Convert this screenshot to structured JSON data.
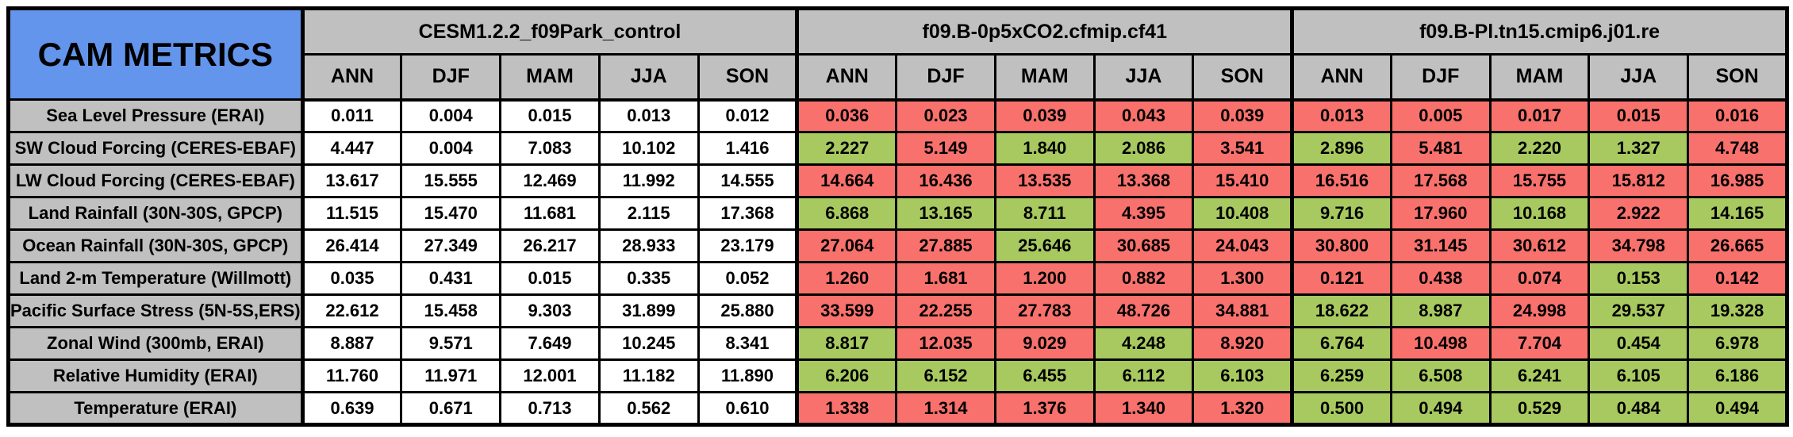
{
  "title": "CAM METRICS",
  "colors": {
    "title_bg": "#6495ED",
    "header_bg": "#C0C0C0",
    "label_bg": "#C0C0C0",
    "red": "#F9716C",
    "green": "#A8C95F",
    "white": "#FFFFFF",
    "border": "#000000"
  },
  "chart_data": {
    "type": "table",
    "title": "CAM METRICS",
    "column_groups": [
      {
        "name": "CESM1.2.2_f09Park_control"
      },
      {
        "name": "f09.B-0p5xCO2.cfmip.cf41"
      },
      {
        "name": "f09.B-Pl.tn15.cmip6.j01.re"
      }
    ],
    "seasons": [
      "ANN",
      "DJF",
      "MAM",
      "JJA",
      "SON"
    ],
    "rows": [
      {
        "label": "Sea Level Pressure (ERAI)",
        "groups": [
          {
            "values": [
              "0.011",
              "0.004",
              "0.015",
              "0.013",
              "0.012"
            ],
            "colors": [
              "white",
              "white",
              "white",
              "white",
              "white"
            ]
          },
          {
            "values": [
              "0.036",
              "0.023",
              "0.039",
              "0.043",
              "0.039"
            ],
            "colors": [
              "red",
              "red",
              "red",
              "red",
              "red"
            ]
          },
          {
            "values": [
              "0.013",
              "0.005",
              "0.017",
              "0.015",
              "0.016"
            ],
            "colors": [
              "red",
              "red",
              "red",
              "red",
              "red"
            ]
          }
        ]
      },
      {
        "label": "SW Cloud Forcing (CERES-EBAF)",
        "groups": [
          {
            "values": [
              "4.447",
              "0.004",
              "7.083",
              "10.102",
              "1.416"
            ],
            "colors": [
              "white",
              "white",
              "white",
              "white",
              "white"
            ]
          },
          {
            "values": [
              "2.227",
              "5.149",
              "1.840",
              "2.086",
              "3.541"
            ],
            "colors": [
              "green",
              "red",
              "green",
              "green",
              "red"
            ]
          },
          {
            "values": [
              "2.896",
              "5.481",
              "2.220",
              "1.327",
              "4.748"
            ],
            "colors": [
              "green",
              "red",
              "green",
              "green",
              "red"
            ]
          }
        ]
      },
      {
        "label": "LW Cloud Forcing (CERES-EBAF)",
        "groups": [
          {
            "values": [
              "13.617",
              "15.555",
              "12.469",
              "11.992",
              "14.555"
            ],
            "colors": [
              "white",
              "white",
              "white",
              "white",
              "white"
            ]
          },
          {
            "values": [
              "14.664",
              "16.436",
              "13.535",
              "13.368",
              "15.410"
            ],
            "colors": [
              "red",
              "red",
              "red",
              "red",
              "red"
            ]
          },
          {
            "values": [
              "16.516",
              "17.568",
              "15.755",
              "15.812",
              "16.985"
            ],
            "colors": [
              "red",
              "red",
              "red",
              "red",
              "red"
            ]
          }
        ]
      },
      {
        "label": "Land Rainfall (30N-30S, GPCP)",
        "groups": [
          {
            "values": [
              "11.515",
              "15.470",
              "11.681",
              "2.115",
              "17.368"
            ],
            "colors": [
              "white",
              "white",
              "white",
              "white",
              "white"
            ]
          },
          {
            "values": [
              "6.868",
              "13.165",
              "8.711",
              "4.395",
              "10.408"
            ],
            "colors": [
              "green",
              "green",
              "green",
              "red",
              "green"
            ]
          },
          {
            "values": [
              "9.716",
              "17.960",
              "10.168",
              "2.922",
              "14.165"
            ],
            "colors": [
              "green",
              "red",
              "green",
              "red",
              "green"
            ]
          }
        ]
      },
      {
        "label": "Ocean Rainfall (30N-30S, GPCP)",
        "groups": [
          {
            "values": [
              "26.414",
              "27.349",
              "26.217",
              "28.933",
              "23.179"
            ],
            "colors": [
              "white",
              "white",
              "white",
              "white",
              "white"
            ]
          },
          {
            "values": [
              "27.064",
              "27.885",
              "25.646",
              "30.685",
              "24.043"
            ],
            "colors": [
              "red",
              "red",
              "green",
              "red",
              "red"
            ]
          },
          {
            "values": [
              "30.800",
              "31.145",
              "30.612",
              "34.798",
              "26.665"
            ],
            "colors": [
              "red",
              "red",
              "red",
              "red",
              "red"
            ]
          }
        ]
      },
      {
        "label": "Land 2-m Temperature (Willmott)",
        "groups": [
          {
            "values": [
              "0.035",
              "0.431",
              "0.015",
              "0.335",
              "0.052"
            ],
            "colors": [
              "white",
              "white",
              "white",
              "white",
              "white"
            ]
          },
          {
            "values": [
              "1.260",
              "1.681",
              "1.200",
              "0.882",
              "1.300"
            ],
            "colors": [
              "red",
              "red",
              "red",
              "red",
              "red"
            ]
          },
          {
            "values": [
              "0.121",
              "0.438",
              "0.074",
              "0.153",
              "0.142"
            ],
            "colors": [
              "red",
              "red",
              "red",
              "green",
              "red"
            ]
          }
        ]
      },
      {
        "label": "Pacific Surface Stress (5N-5S,ERS)",
        "groups": [
          {
            "values": [
              "22.612",
              "15.458",
              "9.303",
              "31.899",
              "25.880"
            ],
            "colors": [
              "white",
              "white",
              "white",
              "white",
              "white"
            ]
          },
          {
            "values": [
              "33.599",
              "22.255",
              "27.783",
              "48.726",
              "34.881"
            ],
            "colors": [
              "red",
              "red",
              "red",
              "red",
              "red"
            ]
          },
          {
            "values": [
              "18.622",
              "8.987",
              "24.998",
              "29.537",
              "19.328"
            ],
            "colors": [
              "green",
              "green",
              "red",
              "green",
              "green"
            ]
          }
        ]
      },
      {
        "label": "Zonal Wind (300mb, ERAI)",
        "groups": [
          {
            "values": [
              "8.887",
              "9.571",
              "7.649",
              "10.245",
              "8.341"
            ],
            "colors": [
              "white",
              "white",
              "white",
              "white",
              "white"
            ]
          },
          {
            "values": [
              "8.817",
              "12.035",
              "9.029",
              "4.248",
              "8.920"
            ],
            "colors": [
              "green",
              "red",
              "red",
              "green",
              "red"
            ]
          },
          {
            "values": [
              "6.764",
              "10.498",
              "7.704",
              "0.454",
              "6.978"
            ],
            "colors": [
              "green",
              "red",
              "red",
              "green",
              "green"
            ]
          }
        ]
      },
      {
        "label": "Relative Humidity (ERAI)",
        "groups": [
          {
            "values": [
              "11.760",
              "11.971",
              "12.001",
              "11.182",
              "11.890"
            ],
            "colors": [
              "white",
              "white",
              "white",
              "white",
              "white"
            ]
          },
          {
            "values": [
              "6.206",
              "6.152",
              "6.455",
              "6.112",
              "6.103"
            ],
            "colors": [
              "green",
              "green",
              "green",
              "green",
              "green"
            ]
          },
          {
            "values": [
              "6.259",
              "6.508",
              "6.241",
              "6.105",
              "6.186"
            ],
            "colors": [
              "green",
              "green",
              "green",
              "green",
              "green"
            ]
          }
        ]
      },
      {
        "label": "Temperature (ERAI)",
        "groups": [
          {
            "values": [
              "0.639",
              "0.671",
              "0.713",
              "0.562",
              "0.610"
            ],
            "colors": [
              "white",
              "white",
              "white",
              "white",
              "white"
            ]
          },
          {
            "values": [
              "1.338",
              "1.314",
              "1.376",
              "1.340",
              "1.320"
            ],
            "colors": [
              "red",
              "red",
              "red",
              "red",
              "red"
            ]
          },
          {
            "values": [
              "0.500",
              "0.494",
              "0.529",
              "0.484",
              "0.494"
            ],
            "colors": [
              "green",
              "green",
              "green",
              "green",
              "green"
            ]
          }
        ]
      }
    ]
  }
}
